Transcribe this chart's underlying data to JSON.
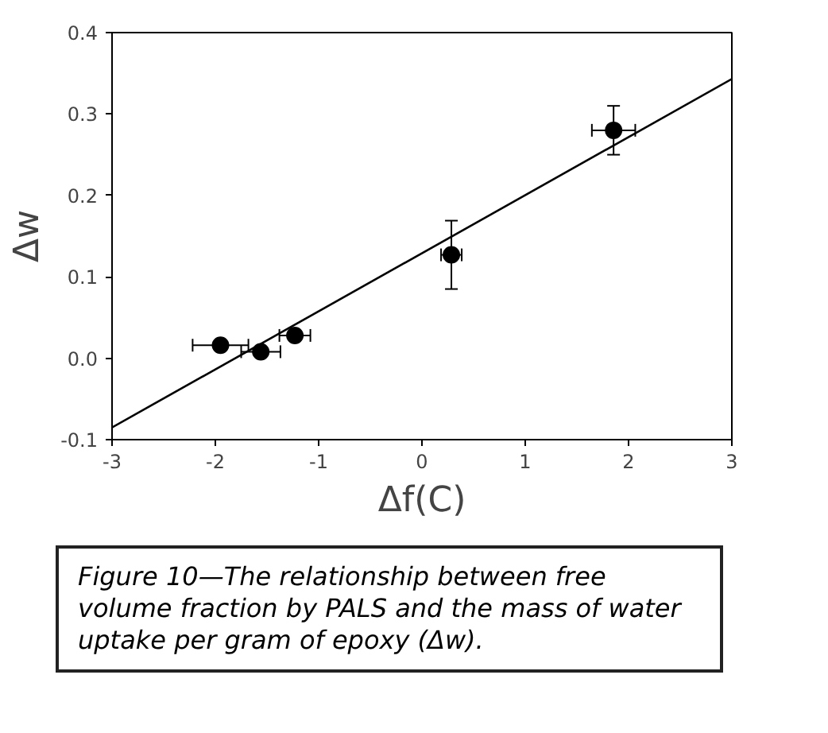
{
  "chart_data": {
    "type": "scatter",
    "xlabel": "Δf(C)",
    "ylabel": "Δw",
    "xlim": [
      -3,
      3
    ],
    "ylim": [
      -0.1,
      0.4
    ],
    "xticks": [
      -3,
      -2,
      -1,
      0,
      1,
      2,
      3
    ],
    "yticks": [
      {
        "value": -0.1,
        "label": "-0.1"
      },
      {
        "value": 0,
        "label": "0.0"
      },
      {
        "value": 0.1,
        "label": "0.1"
      },
      {
        "value": 0.2,
        "label": "0.2"
      },
      {
        "value": 0.3,
        "label": "0.3"
      },
      {
        "value": 0.4,
        "label": "0.4"
      }
    ],
    "grid": false,
    "series": [
      {
        "marker": "circle",
        "color": "#000000",
        "x": [
          -1.95,
          -1.56,
          -1.23,
          0.285,
          1.855
        ],
        "values": [
          0.016,
          0.008,
          0.028,
          0.127,
          0.28
        ],
        "errors": [
          null,
          null,
          null,
          0.042,
          0.03
        ],
        "xerrors": [
          0.27,
          0.19,
          0.15,
          0.1,
          0.21
        ]
      },
      {
        "type": "line",
        "color": "#000000",
        "x": [
          -3,
          3
        ],
        "values": [
          -0.085,
          0.343
        ],
        "line_style": "solid"
      }
    ],
    "annotations": [
      "Figure 10—The relationship between free volume fraction by PALS and the mass of water uptake per gram of epoxy (Δw)."
    ]
  }
}
